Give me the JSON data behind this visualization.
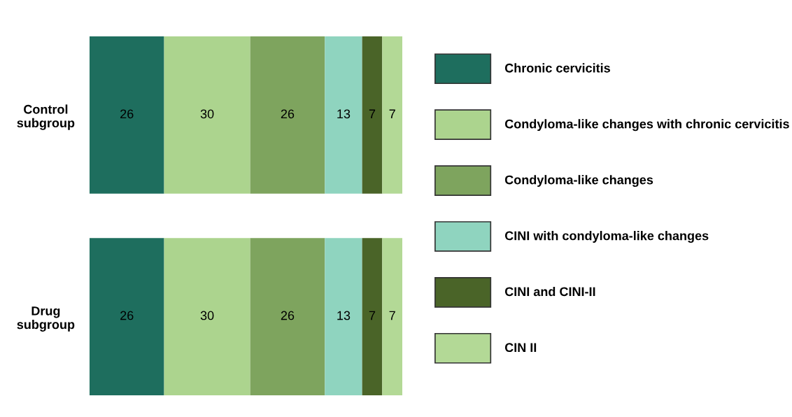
{
  "chart_data": {
    "type": "bar",
    "orientation": "horizontal",
    "stacked": true,
    "data_labels": true,
    "legend": "right",
    "grid": false,
    "tick_labels": "y",
    "categories": [
      "Control\nsubgroup",
      "Drug\nsubgroup"
    ],
    "series": [
      {
        "name": "Chronic cervicitis",
        "color": "#1e6e5e",
        "values": [
          26,
          26
        ]
      },
      {
        "name": "Condyloma-like changes with chronic cervicitis",
        "color": "#acd48e",
        "values": [
          30,
          30
        ]
      },
      {
        "name": "Condyloma-like changes",
        "color": "#7ea45e",
        "values": [
          26,
          26
        ]
      },
      {
        "name": "CINI with condyloma-like changes",
        "color": "#8fd4bf",
        "values": [
          13,
          13
        ]
      },
      {
        "name": "CINI and CINI-II",
        "color": "#4a6428",
        "values": [
          7,
          7
        ]
      },
      {
        "name": "CIN II",
        "color": "#b3d996",
        "values": [
          7,
          7
        ]
      }
    ]
  }
}
